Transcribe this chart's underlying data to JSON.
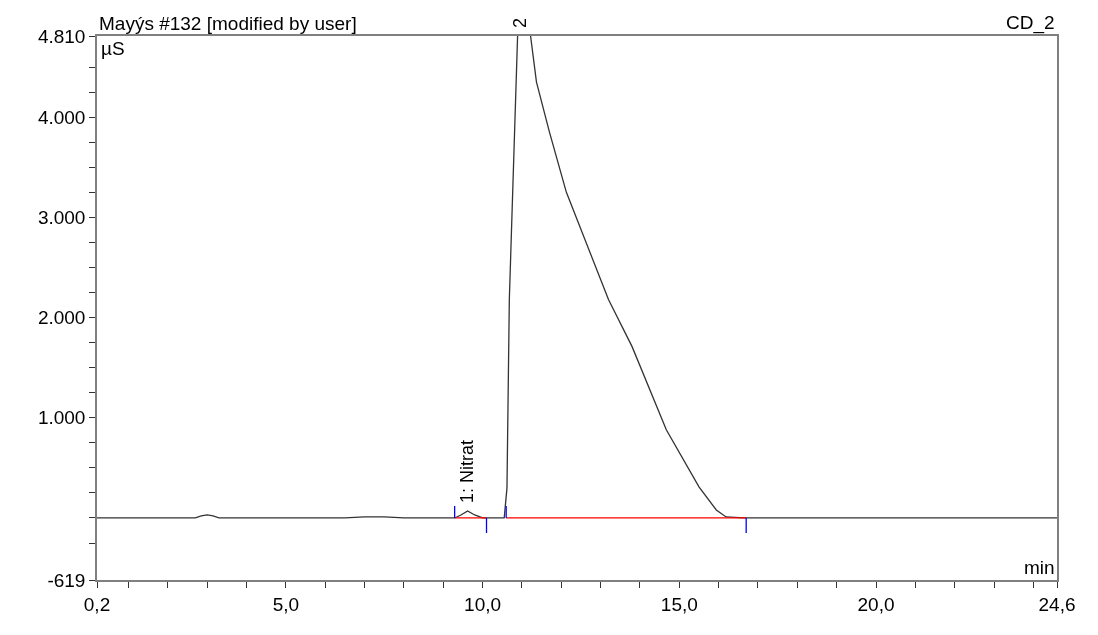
{
  "chart_data": {
    "type": "line",
    "title": "Mayýs #132 [modified by user]",
    "subtitle": "CD_2",
    "xlabel": "min",
    "ylabel": "µS",
    "series": [
      {
        "color": "#333333",
        "x": [
          0.2,
          2.7,
          2.85,
          3.0,
          3.15,
          3.3,
          6.5,
          7.0,
          7.5,
          8.0,
          9.29,
          9.45,
          9.62,
          9.8,
          10.0,
          10.55,
          10.62,
          10.68,
          10.89,
          11.05,
          11.22,
          11.37,
          11.7,
          12.13,
          13.2,
          13.8,
          14.67,
          15.5,
          15.94,
          16.19,
          16.65,
          24.6
        ],
        "values": [
          0,
          0,
          20,
          30,
          20,
          0,
          0,
          10,
          10,
          0,
          0,
          30,
          70,
          30,
          0,
          0,
          300,
          2180,
          4810,
          null,
          4810,
          4350,
          3850,
          3250,
          2180,
          1710,
          880,
          310,
          80,
          10,
          0,
          0
        ]
      },
      {
        "color": "#ff0000",
        "x": [
          9.29,
          10.1,
          10.35,
          10.6,
          16.7
        ],
        "values": [
          0,
          0,
          null,
          0,
          0
        ]
      },
      {
        "color": "#0000ff",
        "x": [
          9.29,
          9.29,
          9.7,
          10.1,
          10.1,
          10.35,
          10.6,
          10.6,
          11.0,
          16.7,
          16.7
        ],
        "values": [
          0,
          120,
          null,
          0,
          -150,
          null,
          0,
          120,
          null,
          0,
          -150
        ]
      }
    ],
    "annotations": [
      {
        "text": "1: Nitrat",
        "x": 9.62,
        "y": 70
      },
      {
        "text": "2",
        "x": 10.95,
        "y": 4810
      }
    ],
    "xlim": [
      0.2,
      24.6
    ],
    "xticks": [
      {
        "value": 0.2,
        "label": "0,2"
      },
      {
        "value": 1,
        "label": null
      },
      {
        "value": 2,
        "label": null
      },
      {
        "value": 3,
        "label": null
      },
      {
        "value": 4,
        "label": null
      },
      {
        "value": 5,
        "label": "5,0"
      },
      {
        "value": 6,
        "label": null
      },
      {
        "value": 7,
        "label": null
      },
      {
        "value": 8,
        "label": null
      },
      {
        "value": 9,
        "label": null
      },
      {
        "value": 10,
        "label": "10,0"
      },
      {
        "value": 11,
        "label": null
      },
      {
        "value": 12,
        "label": null
      },
      {
        "value": 13,
        "label": null
      },
      {
        "value": 14,
        "label": null
      },
      {
        "value": 15,
        "label": "15,0"
      },
      {
        "value": 16,
        "label": null
      },
      {
        "value": 17,
        "label": null
      },
      {
        "value": 18,
        "label": null
      },
      {
        "value": 19,
        "label": null
      },
      {
        "value": 20,
        "label": "20,0"
      },
      {
        "value": 21,
        "label": null
      },
      {
        "value": 22,
        "label": null
      },
      {
        "value": 23,
        "label": null
      },
      {
        "value": 24,
        "label": null
      },
      {
        "value": 24.6,
        "label": "24,6"
      }
    ],
    "ylim": [
      -619,
      4810
    ],
    "yticks": [
      {
        "value": -619,
        "label": "-619"
      },
      {
        "value": -250,
        "label": null
      },
      {
        "value": 0,
        "label": null
      },
      {
        "value": 250,
        "label": null
      },
      {
        "value": 500,
        "label": null
      },
      {
        "value": 750,
        "label": null
      },
      {
        "value": 1000,
        "label": "1.000"
      },
      {
        "value": 1250,
        "label": null
      },
      {
        "value": 1500,
        "label": null
      },
      {
        "value": 1750,
        "label": null
      },
      {
        "value": 2000,
        "label": "2.000"
      },
      {
        "value": 2250,
        "label": null
      },
      {
        "value": 2500,
        "label": null
      },
      {
        "value": 2750,
        "label": null
      },
      {
        "value": 3000,
        "label": "3.000"
      },
      {
        "value": 3250,
        "label": null
      },
      {
        "value": 3500,
        "label": null
      },
      {
        "value": 3750,
        "label": null
      },
      {
        "value": 4000,
        "label": "4.000"
      },
      {
        "value": 4250,
        "label": null
      },
      {
        "value": 4500,
        "label": null
      },
      {
        "value": 4810,
        "label": "4.810"
      }
    ],
    "marker": "none",
    "line_style": "solid"
  }
}
